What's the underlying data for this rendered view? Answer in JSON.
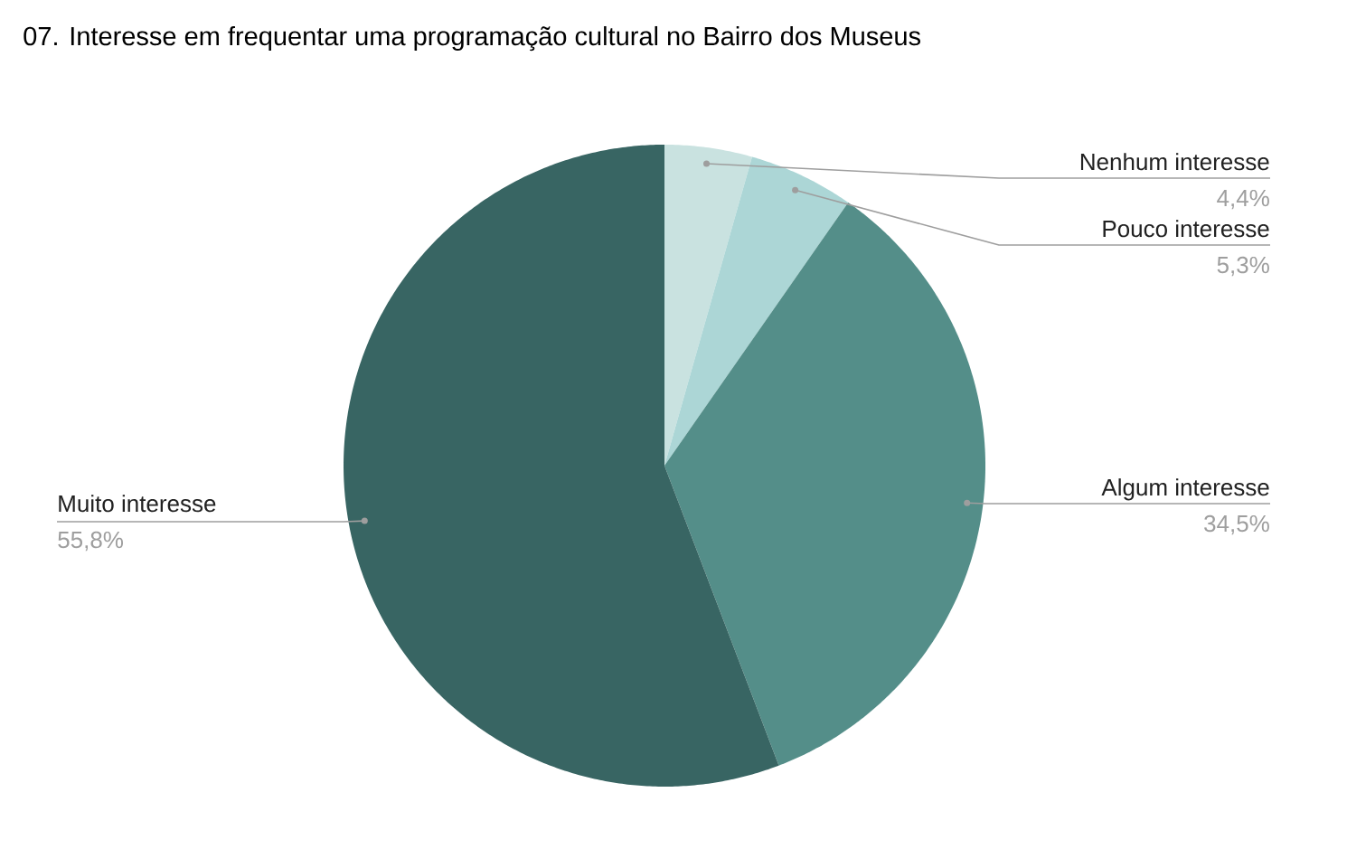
{
  "chart_data": {
    "type": "pie",
    "title": "07. Interesse em frequentar uma programação cultural no Bairro dos Museus",
    "categories": [
      "Nenhum interesse",
      "Pouco interesse",
      "Algum interesse",
      "Muito interesse"
    ],
    "values": [
      4.4,
      5.3,
      34.5,
      55.8
    ],
    "colors": [
      "#c9e2e0",
      "#acd6d6",
      "#548e89",
      "#386563"
    ],
    "value_labels": [
      "4,4%",
      "5,3%",
      "34,5%",
      "55,8%"
    ]
  }
}
